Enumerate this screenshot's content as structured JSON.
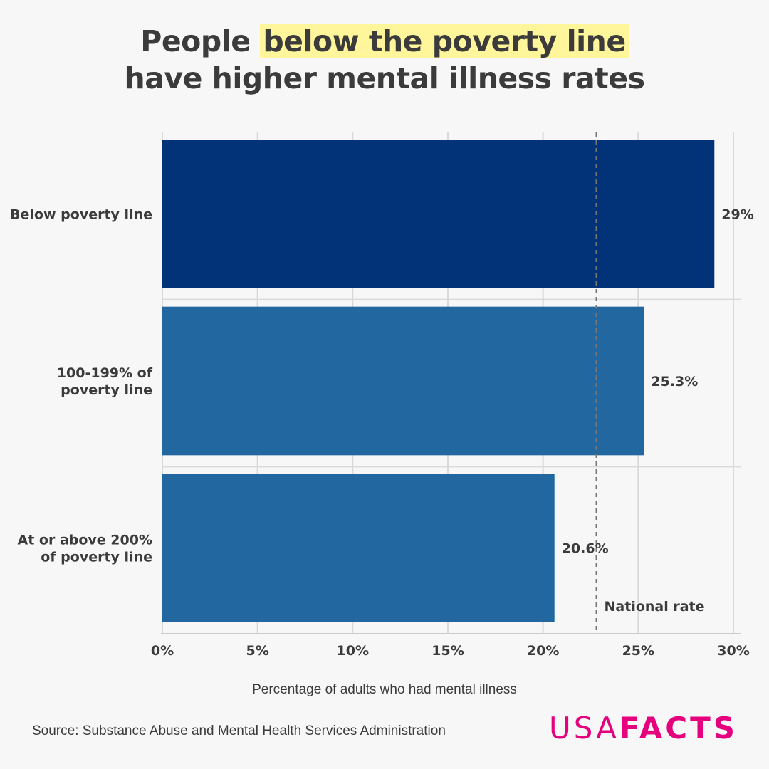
{
  "title": {
    "prefix": "People ",
    "highlight": "below the poverty line",
    "line2": "have higher mental illness rates"
  },
  "chart_data": {
    "type": "bar",
    "orientation": "horizontal",
    "categories": [
      [
        "Below poverty line"
      ],
      [
        "100-199% of",
        "poverty line"
      ],
      [
        "At or above 200%",
        "of poverty line"
      ]
    ],
    "values": [
      29,
      25.3,
      20.6
    ],
    "value_labels": [
      "29%",
      "25.3%",
      "20.6%"
    ],
    "colors": [
      "#023378",
      "#22679f",
      "#22679f"
    ],
    "xlim": [
      0,
      30
    ],
    "xticks": [
      0,
      5,
      10,
      15,
      20,
      25,
      30
    ],
    "xtick_labels": [
      "0%",
      "5%",
      "10%",
      "15%",
      "20%",
      "25%",
      "30%"
    ],
    "xlabel": "Percentage of adults who had mental illness",
    "reference_line": {
      "value": 22.8,
      "label": "National rate"
    },
    "grid": true
  },
  "footer": {
    "source": "Source: Substance Abuse and Mental Health Services Administration",
    "logo_usa": "USA",
    "logo_facts": "FACTS"
  }
}
